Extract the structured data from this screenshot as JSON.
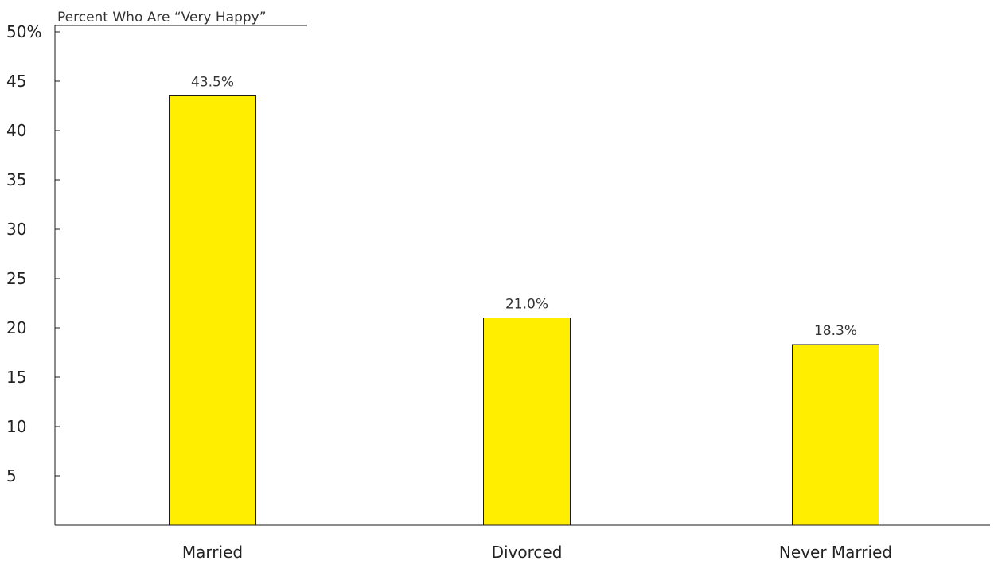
{
  "chart_data": {
    "type": "bar",
    "ylabel": "Percent Who Are “Very Happy”",
    "categories": [
      "Married",
      "Divorced",
      "Never Married"
    ],
    "values": [
      43.5,
      21.0,
      18.3
    ],
    "data_labels": [
      "43.5%",
      "21.0%",
      "18.3%"
    ],
    "ylim": [
      0,
      50
    ],
    "y_ticks": [
      5,
      10,
      15,
      20,
      25,
      30,
      35,
      40,
      45,
      50
    ],
    "y_tick_labels": [
      "5",
      "10",
      "15",
      "20",
      "25",
      "30",
      "35",
      "40",
      "45",
      "50%"
    ],
    "bar_color": "#FFEE00",
    "grid": false,
    "legend": "none"
  }
}
